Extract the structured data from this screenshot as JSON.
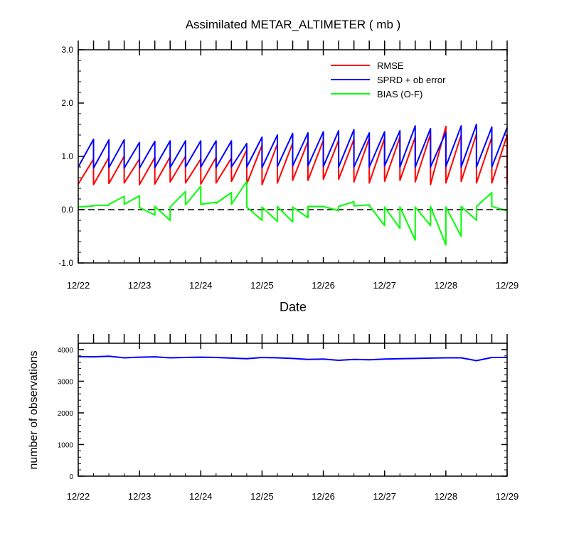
{
  "chart_data": [
    {
      "type": "line",
      "title": "Assimilated METAR_ALTIMETER ( mb )",
      "xlabel": "Date",
      "ylabel": "",
      "xlim": [
        0,
        7
      ],
      "ylim": [
        -1.0,
        3.0
      ],
      "x_tick_labels": [
        "12/22",
        "12/23",
        "12/24",
        "12/25",
        "12/26",
        "12/27",
        "12/28",
        "12/29"
      ],
      "y_tick_labels": [
        "-1.0",
        "0.0",
        "1.0",
        "2.0",
        "3.0"
      ],
      "y_ticks": [
        -1.0,
        0.0,
        1.0,
        2.0,
        3.0
      ],
      "zero_line": true,
      "legend_position": "top-right",
      "series": [
        {
          "name": "RMSE",
          "color": "#ff0000",
          "x": [
            0,
            0.25,
            0.25,
            0.5,
            0.5,
            0.75,
            0.75,
            1.0,
            1.0,
            1.25,
            1.25,
            1.5,
            1.5,
            1.75,
            1.75,
            2.0,
            2.0,
            2.25,
            2.25,
            2.5,
            2.5,
            2.75,
            2.75,
            3.0,
            3.0,
            3.25,
            3.25,
            3.5,
            3.5,
            3.75,
            3.75,
            4.0,
            4.0,
            4.25,
            4.25,
            4.5,
            4.5,
            4.75,
            4.75,
            5.0,
            5.0,
            5.25,
            5.25,
            5.5,
            5.5,
            5.75,
            5.75,
            6.0,
            6.0,
            6.25,
            6.25,
            6.5,
            6.5,
            6.75,
            6.75,
            7.0,
            7.0
          ],
          "values": [
            0.48,
            0.95,
            0.47,
            0.98,
            0.49,
            1.0,
            0.5,
            0.95,
            0.47,
            0.98,
            0.48,
            0.99,
            0.52,
            1.0,
            0.5,
            0.95,
            0.48,
            0.98,
            0.5,
            0.97,
            0.53,
            1.12,
            0.48,
            1.21,
            0.47,
            1.23,
            0.5,
            1.25,
            0.55,
            1.28,
            0.55,
            1.3,
            0.57,
            1.3,
            0.57,
            1.32,
            0.52,
            1.34,
            0.5,
            1.34,
            0.53,
            1.36,
            0.55,
            1.36,
            0.52,
            1.42,
            0.47,
            1.56,
            0.5,
            1.4,
            0.53,
            1.42,
            0.5,
            1.36,
            0.5,
            1.4,
            0.47
          ]
        },
        {
          "name": "SPRD + ob error",
          "color": "#0000ff",
          "x": [
            0,
            0.25,
            0.25,
            0.5,
            0.5,
            0.75,
            0.75,
            1.0,
            1.0,
            1.25,
            1.25,
            1.5,
            1.5,
            1.75,
            1.75,
            2.0,
            2.0,
            2.25,
            2.25,
            2.5,
            2.5,
            2.75,
            2.75,
            3.0,
            3.0,
            3.25,
            3.25,
            3.5,
            3.5,
            3.75,
            3.75,
            4.0,
            4.0,
            4.25,
            4.25,
            4.5,
            4.5,
            4.75,
            4.75,
            5.0,
            5.0,
            5.25,
            5.25,
            5.5,
            5.5,
            5.75,
            5.75,
            6.0,
            6.0,
            6.25,
            6.25,
            6.5,
            6.5,
            6.75,
            6.75,
            7.0
          ],
          "values": [
            0.8,
            1.32,
            0.78,
            1.31,
            0.79,
            1.31,
            0.78,
            1.26,
            0.78,
            1.28,
            0.79,
            1.29,
            0.79,
            1.29,
            0.8,
            1.29,
            0.8,
            1.29,
            0.79,
            1.29,
            0.8,
            1.24,
            0.8,
            1.36,
            0.79,
            1.4,
            0.81,
            1.43,
            0.82,
            1.44,
            0.82,
            1.46,
            0.81,
            1.48,
            0.8,
            1.5,
            0.8,
            1.44,
            0.8,
            1.46,
            0.82,
            1.48,
            0.8,
            1.57,
            0.8,
            1.52,
            0.8,
            1.45,
            0.81,
            1.57,
            0.8,
            1.6,
            0.8,
            1.55,
            0.8,
            1.54
          ]
        },
        {
          "name": "BIAS (O-F)",
          "color": "#00ff00",
          "x": [
            0,
            0.25,
            0.25,
            0.5,
            0.5,
            0.75,
            0.75,
            1.0,
            1.0,
            1.25,
            1.25,
            1.5,
            1.5,
            1.75,
            1.75,
            2.0,
            2.0,
            2.25,
            2.25,
            2.5,
            2.5,
            2.75,
            2.75,
            3.0,
            3.0,
            3.25,
            3.25,
            3.5,
            3.5,
            3.75,
            3.75,
            4.0,
            4.0,
            4.25,
            4.25,
            4.5,
            4.5,
            4.75,
            4.75,
            5.0,
            5.0,
            5.25,
            5.25,
            5.5,
            5.5,
            5.75,
            5.75,
            6.0,
            6.0,
            6.25,
            6.25,
            6.5,
            6.5,
            6.75,
            6.75,
            7.0
          ],
          "values": [
            0.05,
            0.07,
            0.08,
            0.08,
            0.1,
            0.25,
            0.1,
            0.26,
            0.04,
            -0.1,
            0.06,
            -0.2,
            0.05,
            0.34,
            0.09,
            0.44,
            0.1,
            0.14,
            0.12,
            0.32,
            0.1,
            0.53,
            0.05,
            -0.2,
            0.05,
            -0.22,
            0.06,
            -0.23,
            0.05,
            -0.15,
            0.06,
            0.06,
            0.06,
            -0.02,
            0.06,
            0.15,
            0.07,
            0.09,
            0.08,
            -0.3,
            0.05,
            -0.35,
            0.05,
            -0.57,
            0.05,
            -0.3,
            0.06,
            -0.66,
            0.05,
            -0.5,
            0.06,
            -0.2,
            0.06,
            0.32,
            0.06,
            -0.02
          ]
        }
      ]
    },
    {
      "type": "line",
      "title": "",
      "xlabel": "",
      "ylabel": "number of observations",
      "xlim": [
        0,
        7
      ],
      "ylim": [
        0,
        4200
      ],
      "x_tick_labels": [
        "12/22",
        "12/23",
        "12/24",
        "12/25",
        "12/26",
        "12/27",
        "12/28",
        "12/29"
      ],
      "y_tick_labels": [
        "0",
        "1000",
        "2000",
        "3000",
        "4000"
      ],
      "y_ticks": [
        0,
        1000,
        2000,
        3000,
        4000
      ],
      "series": [
        {
          "name": "observations",
          "color": "#0000ff",
          "x": [
            0,
            0.25,
            0.5,
            0.75,
            1.0,
            1.25,
            1.5,
            1.75,
            2.0,
            2.25,
            2.5,
            2.75,
            3.0,
            3.25,
            3.5,
            3.75,
            4.0,
            4.25,
            4.5,
            4.75,
            5.0,
            5.25,
            5.5,
            5.75,
            6.0,
            6.25,
            6.5,
            6.75,
            7.0
          ],
          "values": [
            3780,
            3770,
            3790,
            3740,
            3760,
            3770,
            3740,
            3750,
            3760,
            3750,
            3730,
            3710,
            3750,
            3740,
            3720,
            3690,
            3700,
            3660,
            3690,
            3680,
            3700,
            3710,
            3720,
            3730,
            3740,
            3740,
            3650,
            3750,
            3750
          ]
        }
      ]
    }
  ]
}
